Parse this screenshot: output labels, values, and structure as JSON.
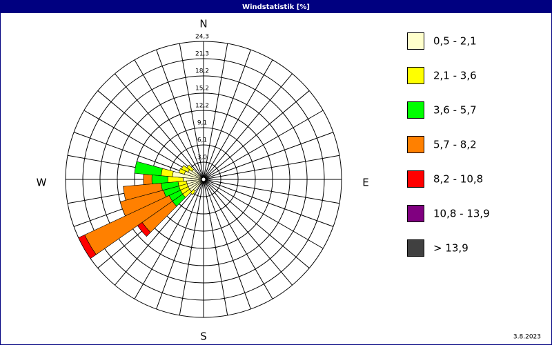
{
  "chart_data": {
    "type": "windrose",
    "title": "Windstatistik [%]",
    "date": "3.8.2023",
    "cardinal_labels": [
      "N",
      "E",
      "S",
      "W"
    ],
    "x": [
      220,
      230,
      240,
      250,
      260,
      270,
      280,
      290,
      300,
      310
    ],
    "series": [
      {
        "name": "0,5 - 2,1",
        "color": "#ffffcc",
        "values": [
          2.5,
          3.0,
          3.0,
          3.0,
          3.0,
          3.6,
          5.5,
          3.5,
          3.0,
          2.5
        ]
      },
      {
        "name": "2,1 - 3,6",
        "color": "#ffff00",
        "values": [
          0.8,
          1.5,
          1.5,
          1.5,
          1.5,
          2.7,
          2.0,
          1.0,
          1.3,
          1.1
        ]
      },
      {
        "name": "3,6 - 5,7",
        "color": "#00ff00",
        "values": [
          0,
          2.2,
          2.2,
          2.8,
          3.0,
          2.8,
          4.7,
          0,
          0,
          0
        ]
      },
      {
        "name": "5,7 - 8,2",
        "color": "#ff8000",
        "values": [
          0,
          6.5,
          16.4,
          7.9,
          6.7,
          1.5,
          0,
          0,
          0,
          0
        ]
      },
      {
        "name": "8,2 - 10,8",
        "color": "#ff0000",
        "values": [
          0,
          1.0,
          1.2,
          0,
          0,
          0,
          0,
          0,
          0,
          0
        ]
      },
      {
        "name": "10,8 - 13,9",
        "color": "#800080",
        "values": [
          0,
          0,
          0,
          0,
          0,
          0,
          0,
          0,
          0,
          0
        ]
      },
      {
        "name": " > 13,9",
        "color": "#404040",
        "values": [
          0,
          0,
          0,
          0,
          0,
          0,
          0,
          0,
          0,
          0
        ]
      }
    ],
    "ylim": [
      0,
      24.3
    ],
    "yticks": [
      {
        "value": 3.04,
        "label": "3,0"
      },
      {
        "value": 6.08,
        "label": "6,1"
      },
      {
        "value": 9.11,
        "label": "9,1"
      },
      {
        "value": 12.15,
        "label": "12,2"
      },
      {
        "value": 15.19,
        "label": "15,2"
      },
      {
        "value": 18.23,
        "label": "18,2"
      },
      {
        "value": 21.26,
        "label": "21,3"
      },
      {
        "value": 24.3,
        "label": "24,3"
      }
    ],
    "sector_width": 10
  }
}
